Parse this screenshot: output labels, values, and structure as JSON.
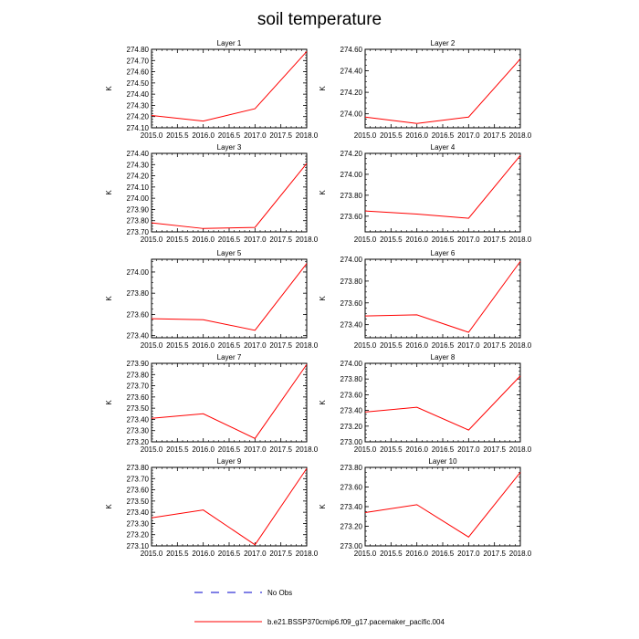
{
  "figure": {
    "title": "soil temperature",
    "ylabel": "K",
    "line_color": "#ff0000",
    "legend": {
      "obs_label": "No Obs",
      "obs_color": "#0000cc",
      "model_label": "b.e21.BSSP370cmip6.f09_g17.pacemaker_pacific.004",
      "model_color": "#ff0000"
    }
  },
  "chart_data": [
    {
      "type": "line",
      "title": "Layer 1",
      "ylabel": "K",
      "x": [
        2015.0,
        2016.0,
        2017.0,
        2018.0
      ],
      "values": [
        274.21,
        274.16,
        274.27,
        274.78
      ],
      "xlim": [
        2015.0,
        2018.0
      ],
      "ylim": [
        274.1,
        274.8
      ],
      "xticks": [
        "2015.0",
        "2015.5",
        "2016.0",
        "2016.5",
        "2017.0",
        "2017.5",
        "2018.0"
      ],
      "yticks": [
        "274.10",
        "274.20",
        "274.30",
        "274.40",
        "274.50",
        "274.60",
        "274.70",
        "274.80"
      ]
    },
    {
      "type": "line",
      "title": "Layer 2",
      "ylabel": "K",
      "x": [
        2015.0,
        2016.0,
        2017.0,
        2018.0
      ],
      "values": [
        273.97,
        273.91,
        273.97,
        274.51
      ],
      "xlim": [
        2015.0,
        2018.0
      ],
      "ylim": [
        273.87,
        274.6
      ],
      "xticks": [
        "2015.0",
        "2015.5",
        "2016.0",
        "2016.5",
        "2017.0",
        "2017.5",
        "2018.0"
      ],
      "yticks": [
        "274.00",
        "274.20",
        "274.40",
        "274.60"
      ]
    },
    {
      "type": "line",
      "title": "Layer 3",
      "ylabel": "K",
      "x": [
        2015.0,
        2016.0,
        2017.0,
        2018.0
      ],
      "values": [
        273.78,
        273.73,
        273.74,
        274.31
      ],
      "xlim": [
        2015.0,
        2018.0
      ],
      "ylim": [
        273.7,
        274.4
      ],
      "xticks": [
        "2015.0",
        "2015.5",
        "2016.0",
        "2016.5",
        "2017.0",
        "2017.5",
        "2018.0"
      ],
      "yticks": [
        "273.70",
        "273.80",
        "273.90",
        "274.00",
        "274.10",
        "274.20",
        "274.30",
        "274.40"
      ]
    },
    {
      "type": "line",
      "title": "Layer 4",
      "ylabel": "K",
      "x": [
        2015.0,
        2016.0,
        2017.0,
        2018.0
      ],
      "values": [
        273.65,
        273.62,
        273.58,
        274.18
      ],
      "xlim": [
        2015.0,
        2018.0
      ],
      "ylim": [
        273.45,
        274.2
      ],
      "xticks": [
        "2015.0",
        "2015.5",
        "2016.0",
        "2016.5",
        "2017.0",
        "2017.5",
        "2018.0"
      ],
      "yticks": [
        "273.60",
        "273.80",
        "274.00",
        "274.20"
      ]
    },
    {
      "type": "line",
      "title": "Layer 5",
      "ylabel": "K",
      "x": [
        2015.0,
        2016.0,
        2017.0,
        2018.0
      ],
      "values": [
        273.56,
        273.55,
        273.45,
        274.08
      ],
      "xlim": [
        2015.0,
        2018.0
      ],
      "ylim": [
        273.38,
        274.12
      ],
      "xticks": [
        "2015.0",
        "2015.5",
        "2016.0",
        "2016.5",
        "2017.0",
        "2017.5",
        "2018.0"
      ],
      "yticks": [
        "273.40",
        "273.60",
        "273.80",
        "274.00"
      ]
    },
    {
      "type": "line",
      "title": "Layer 6",
      "ylabel": "K",
      "x": [
        2015.0,
        2016.0,
        2017.0,
        2018.0
      ],
      "values": [
        273.48,
        273.49,
        273.33,
        273.98
      ],
      "xlim": [
        2015.0,
        2018.0
      ],
      "ylim": [
        273.28,
        274.0
      ],
      "xticks": [
        "2015.0",
        "2015.5",
        "2016.0",
        "2016.5",
        "2017.0",
        "2017.5",
        "2018.0"
      ],
      "yticks": [
        "273.40",
        "273.60",
        "273.80",
        "274.00"
      ]
    },
    {
      "type": "line",
      "title": "Layer 7",
      "ylabel": "K",
      "x": [
        2015.0,
        2016.0,
        2017.0,
        2018.0
      ],
      "values": [
        273.41,
        273.45,
        273.23,
        273.89
      ],
      "xlim": [
        2015.0,
        2018.0
      ],
      "ylim": [
        273.2,
        273.9
      ],
      "xticks": [
        "2015.0",
        "2015.5",
        "2016.0",
        "2016.5",
        "2017.0",
        "2017.5",
        "2018.0"
      ],
      "yticks": [
        "273.20",
        "273.30",
        "273.40",
        "273.50",
        "273.60",
        "273.70",
        "273.80",
        "273.90"
      ]
    },
    {
      "type": "line",
      "title": "Layer 8",
      "ylabel": "K",
      "x": [
        2015.0,
        2016.0,
        2017.0,
        2018.0
      ],
      "values": [
        273.38,
        273.44,
        273.15,
        273.84
      ],
      "xlim": [
        2015.0,
        2018.0
      ],
      "ylim": [
        273.0,
        274.0
      ],
      "xticks": [
        "2015.0",
        "2015.5",
        "2016.0",
        "2016.5",
        "2017.0",
        "2017.5",
        "2018.0"
      ],
      "yticks": [
        "273.00",
        "273.20",
        "273.40",
        "273.60",
        "273.80",
        "274.00"
      ]
    },
    {
      "type": "line",
      "title": "Layer 9",
      "ylabel": "K",
      "x": [
        2015.0,
        2016.0,
        2017.0,
        2018.0
      ],
      "values": [
        273.35,
        273.42,
        273.11,
        273.79
      ],
      "xlim": [
        2015.0,
        2018.0
      ],
      "ylim": [
        273.1,
        273.8
      ],
      "xticks": [
        "2015.0",
        "2015.5",
        "2016.0",
        "2016.5",
        "2017.0",
        "2017.5",
        "2018.0"
      ],
      "yticks": [
        "273.10",
        "273.20",
        "273.30",
        "273.40",
        "273.50",
        "273.60",
        "273.70",
        "273.80"
      ]
    },
    {
      "type": "line",
      "title": "Layer 10",
      "ylabel": "K",
      "x": [
        2015.0,
        2016.0,
        2017.0,
        2018.0
      ],
      "values": [
        273.34,
        273.42,
        273.09,
        273.75
      ],
      "xlim": [
        2015.0,
        2018.0
      ],
      "ylim": [
        273.0,
        273.8
      ],
      "xticks": [
        "2015.0",
        "2015.5",
        "2016.0",
        "2016.5",
        "2017.0",
        "2017.5",
        "2018.0"
      ],
      "yticks": [
        "273.00",
        "273.20",
        "273.40",
        "273.60",
        "273.80"
      ]
    }
  ]
}
